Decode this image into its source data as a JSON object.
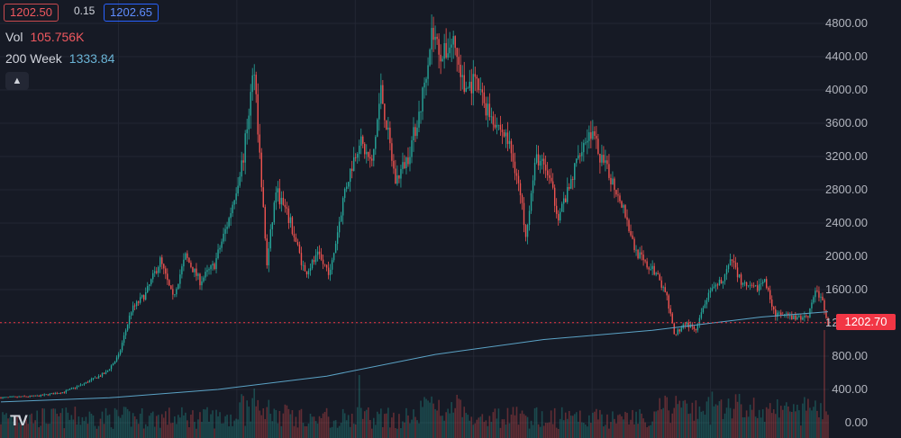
{
  "header": {
    "bid": "1202.50",
    "spread": "0.15",
    "ask": "1202.65",
    "volume_label": "Vol",
    "volume_value": "105.756K",
    "ma_label": "200 Week",
    "ma_value": "1333.84",
    "collapse_icon": "chevron-up-icon"
  },
  "last_price": "1202.70",
  "logo_text": "TV",
  "colors": {
    "background": "#161a25",
    "grid": "#232734",
    "up": "#26a69a",
    "down": "#ef5350",
    "moving_average": "#5ba3c6",
    "last_price": "#f23645",
    "axis_text": "#b2b5be"
  },
  "chart_data": {
    "type": "candlestick",
    "title": "",
    "xlabel": "",
    "ylabel": "",
    "ylim": [
      0,
      4900
    ],
    "y_ticks": [
      "4800.00",
      "4400.00",
      "4000.00",
      "3600.00",
      "3200.00",
      "2800.00",
      "2400.00",
      "2000.00",
      "1600.00",
      "1200.00",
      "800.00",
      "400.00",
      "0.00"
    ],
    "grid": true,
    "last_price": 1202.7,
    "price_path": [
      {
        "i": 0,
        "p": 300
      },
      {
        "i": 20,
        "p": 320
      },
      {
        "i": 35,
        "p": 370
      },
      {
        "i": 45,
        "p": 460
      },
      {
        "i": 58,
        "p": 600
      },
      {
        "i": 65,
        "p": 800
      },
      {
        "i": 72,
        "p": 1350
      },
      {
        "i": 80,
        "p": 1550
      },
      {
        "i": 88,
        "p": 1950
      },
      {
        "i": 95,
        "p": 1500
      },
      {
        "i": 102,
        "p": 2000
      },
      {
        "i": 110,
        "p": 1700
      },
      {
        "i": 118,
        "p": 1900
      },
      {
        "i": 126,
        "p": 2450
      },
      {
        "i": 134,
        "p": 3200
      },
      {
        "i": 140,
        "p": 4300
      },
      {
        "i": 143,
        "p": 3200
      },
      {
        "i": 147,
        "p": 1900
      },
      {
        "i": 152,
        "p": 2800
      },
      {
        "i": 160,
        "p": 2400
      },
      {
        "i": 168,
        "p": 1800
      },
      {
        "i": 175,
        "p": 2000
      },
      {
        "i": 182,
        "p": 1800
      },
      {
        "i": 190,
        "p": 2800
      },
      {
        "i": 198,
        "p": 3400
      },
      {
        "i": 205,
        "p": 3100
      },
      {
        "i": 210,
        "p": 4000
      },
      {
        "i": 218,
        "p": 2900
      },
      {
        "i": 225,
        "p": 3200
      },
      {
        "i": 232,
        "p": 3800
      },
      {
        "i": 238,
        "p": 4700
      },
      {
        "i": 244,
        "p": 4400
      },
      {
        "i": 250,
        "p": 4600
      },
      {
        "i": 256,
        "p": 4000
      },
      {
        "i": 262,
        "p": 4100
      },
      {
        "i": 268,
        "p": 3800
      },
      {
        "i": 274,
        "p": 3600
      },
      {
        "i": 280,
        "p": 3400
      },
      {
        "i": 285,
        "p": 3000
      },
      {
        "i": 290,
        "p": 2300
      },
      {
        "i": 296,
        "p": 3200
      },
      {
        "i": 302,
        "p": 3000
      },
      {
        "i": 308,
        "p": 2500
      },
      {
        "i": 314,
        "p": 2800
      },
      {
        "i": 320,
        "p": 3300
      },
      {
        "i": 326,
        "p": 3500
      },
      {
        "i": 332,
        "p": 3150
      },
      {
        "i": 338,
        "p": 2900
      },
      {
        "i": 344,
        "p": 2600
      },
      {
        "i": 350,
        "p": 2100
      },
      {
        "i": 356,
        "p": 1900
      },
      {
        "i": 362,
        "p": 1800
      },
      {
        "i": 368,
        "p": 1500
      },
      {
        "i": 372,
        "p": 1050
      },
      {
        "i": 378,
        "p": 1200
      },
      {
        "i": 384,
        "p": 1100
      },
      {
        "i": 390,
        "p": 1500
      },
      {
        "i": 398,
        "p": 1700
      },
      {
        "i": 404,
        "p": 1950
      },
      {
        "i": 410,
        "p": 1650
      },
      {
        "i": 416,
        "p": 1600
      },
      {
        "i": 422,
        "p": 1700
      },
      {
        "i": 428,
        "p": 1300
      },
      {
        "i": 434,
        "p": 1280
      },
      {
        "i": 440,
        "p": 1250
      },
      {
        "i": 446,
        "p": 1300
      },
      {
        "i": 450,
        "p": 1600
      },
      {
        "i": 454,
        "p": 1450
      },
      {
        "i": 457,
        "p": 1202.7
      }
    ],
    "moving_average_path": [
      {
        "i": 0,
        "p": 250
      },
      {
        "i": 60,
        "p": 300
      },
      {
        "i": 120,
        "p": 400
      },
      {
        "i": 180,
        "p": 560
      },
      {
        "i": 240,
        "p": 820
      },
      {
        "i": 300,
        "p": 1000
      },
      {
        "i": 360,
        "p": 1110
      },
      {
        "i": 420,
        "p": 1270
      },
      {
        "i": 457,
        "p": 1333.84
      }
    ],
    "series": [
      {
        "name": "Vol",
        "type": "volume"
      },
      {
        "name": "200 Week",
        "type": "moving_average"
      }
    ]
  }
}
